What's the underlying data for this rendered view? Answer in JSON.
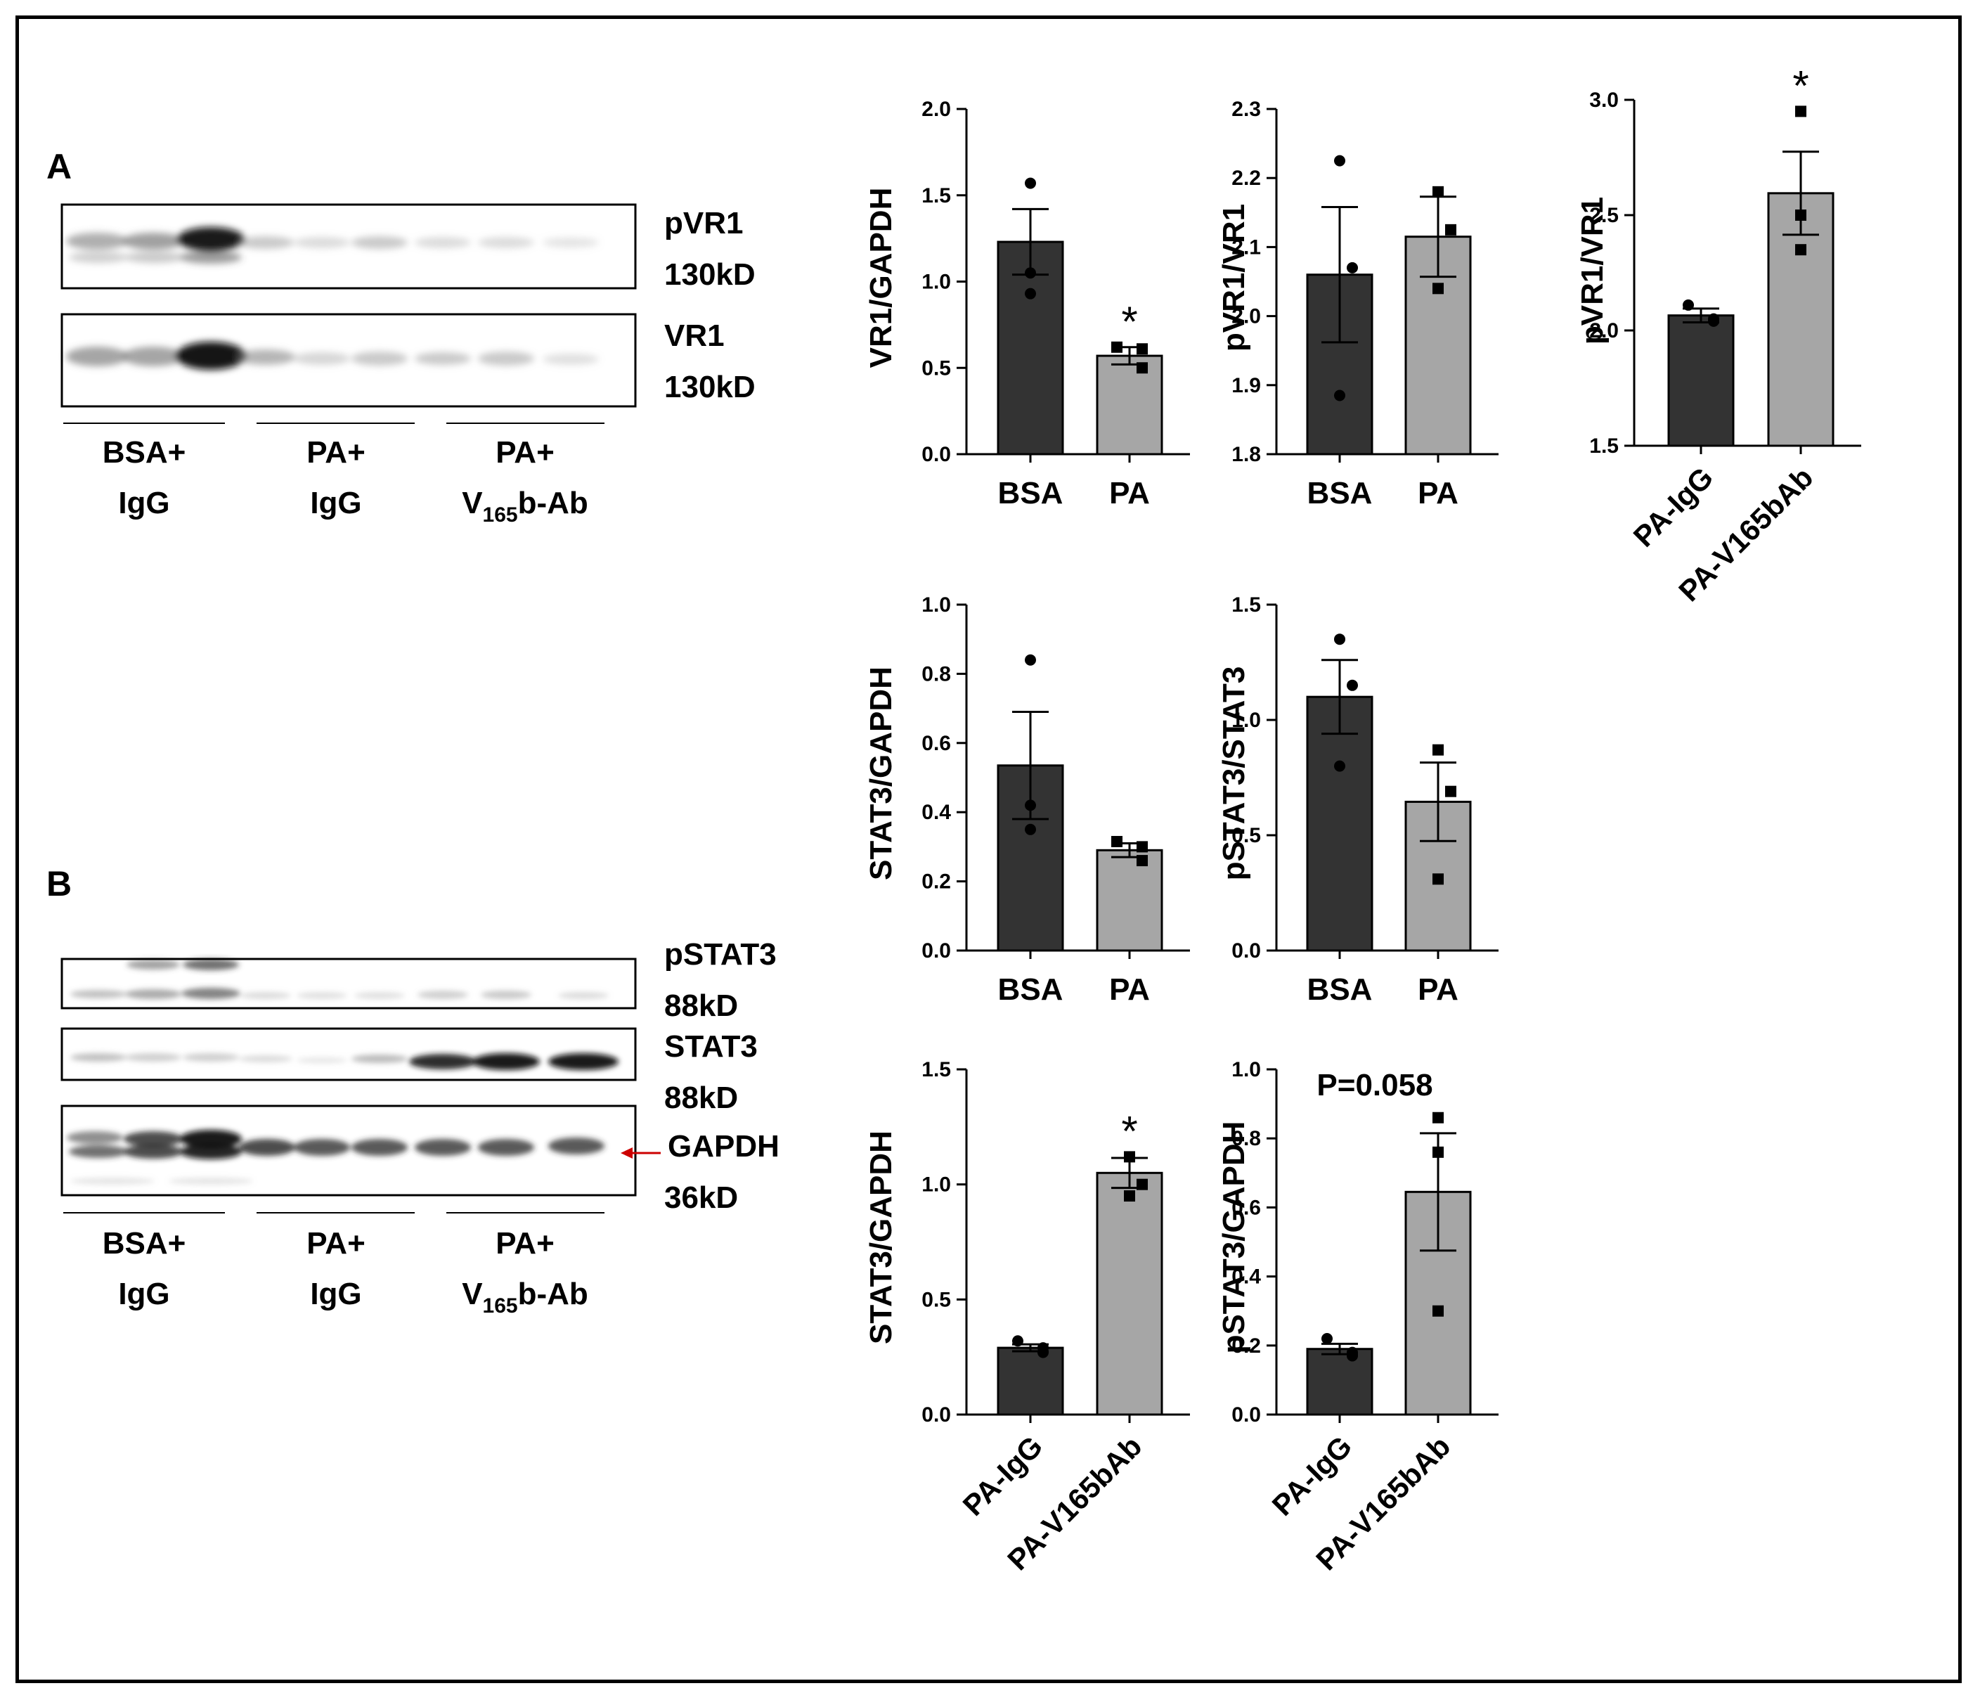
{
  "panelA": {
    "letter": "A",
    "blots": [
      {
        "name": "pVR1",
        "size": "130kD"
      },
      {
        "name": "VR1",
        "size": "130kD"
      }
    ],
    "groups": [
      {
        "line1": "BSA+",
        "line2": "IgG"
      },
      {
        "line1": "PA+",
        "line2": "IgG"
      },
      {
        "line1": "PA+",
        "line2": "V",
        "sub": "165",
        "tail": "b-Ab"
      }
    ]
  },
  "panelB": {
    "letter": "B",
    "blots": [
      {
        "name": "pSTAT3",
        "size": "88kD"
      },
      {
        "name": "STAT3",
        "size": "88kD"
      },
      {
        "name": "GAPDH",
        "size": "36kD"
      }
    ],
    "groups": [
      {
        "line1": "BSA+",
        "line2": "IgG"
      },
      {
        "line1": "PA+",
        "line2": "IgG"
      },
      {
        "line1": "PA+",
        "line2": "V",
        "sub": "165",
        "tail": "b-Ab"
      }
    ]
  },
  "colors": {
    "dark_bar": "#333333",
    "light_bar": "#a6a6a6",
    "marker_arrow": "#cc0000"
  },
  "chart_data": [
    {
      "id": "c1",
      "type": "bar",
      "ylabel": "VR1/GAPDH",
      "categories": [
        "BSA",
        "PA"
      ],
      "rotated_labels": false,
      "ylim": [
        0,
        2.0
      ],
      "ticks": [
        0.0,
        0.5,
        1.0,
        1.5,
        2.0
      ],
      "tick_labels": [
        "0.0",
        "0.5",
        "1.0",
        "1.5",
        "2.0"
      ],
      "values": [
        1.23,
        0.57
      ],
      "errors": [
        0.19,
        0.05
      ],
      "points": [
        [
          1.57,
          1.05,
          0.93
        ],
        [
          0.62,
          0.61,
          0.5
        ]
      ],
      "markers": [
        "circle",
        "square"
      ],
      "annotations": [
        {
          "text": "*",
          "category": 1
        }
      ]
    },
    {
      "id": "c2",
      "type": "bar",
      "ylabel": "pVR1/VR1",
      "categories": [
        "BSA",
        "PA"
      ],
      "rotated_labels": false,
      "ylim": [
        1.8,
        2.3
      ],
      "ticks": [
        1.8,
        1.9,
        2.0,
        2.1,
        2.2,
        2.3
      ],
      "tick_labels": [
        "1.8",
        "1.9",
        "2.0",
        "2.1",
        "2.2",
        "2.3"
      ],
      "values": [
        2.06,
        2.115
      ],
      "errors": [
        0.098,
        0.058
      ],
      "points": [
        [
          2.225,
          2.07,
          1.885
        ],
        [
          2.18,
          2.125,
          2.04
        ]
      ],
      "markers": [
        "circle",
        "square"
      ],
      "annotations": []
    },
    {
      "id": "c3",
      "type": "bar",
      "ylabel": "pVR1/VR1",
      "categories": [
        "PA-IgG",
        "PA-V165bAb"
      ],
      "rotated_labels": true,
      "ylim": [
        1.5,
        3.0
      ],
      "ticks": [
        1.5,
        2.0,
        2.5,
        3.0
      ],
      "tick_labels": [
        "1.5",
        "2.0",
        "2.5",
        "3.0"
      ],
      "values": [
        2.065,
        2.595
      ],
      "errors": [
        0.03,
        0.18
      ],
      "points": [
        [
          2.11,
          2.04,
          2.05
        ],
        [
          2.95,
          2.5,
          2.35
        ]
      ],
      "markers": [
        "circle",
        "square"
      ],
      "annotations": [
        {
          "text": "*",
          "category": 1
        }
      ]
    },
    {
      "id": "c4",
      "type": "bar",
      "ylabel": "STAT3/GAPDH",
      "categories": [
        "BSA",
        "PA"
      ],
      "rotated_labels": false,
      "ylim": [
        0,
        1.0
      ],
      "ticks": [
        0.0,
        0.2,
        0.4,
        0.6,
        0.8,
        1.0
      ],
      "tick_labels": [
        "0.0",
        "0.2",
        "0.4",
        "0.6",
        "0.8",
        "1.0"
      ],
      "values": [
        0.535,
        0.29
      ],
      "errors": [
        0.155,
        0.02
      ],
      "points": [
        [
          0.84,
          0.42,
          0.35
        ],
        [
          0.315,
          0.3,
          0.26
        ]
      ],
      "markers": [
        "circle",
        "square"
      ],
      "annotations": []
    },
    {
      "id": "c5",
      "type": "bar",
      "ylabel": "pSTAT3/STAT3",
      "categories": [
        "BSA",
        "PA"
      ],
      "rotated_labels": false,
      "ylim": [
        0,
        1.5
      ],
      "ticks": [
        0.0,
        0.5,
        1.0,
        1.5
      ],
      "tick_labels": [
        "0.0",
        "0.5",
        "1.0",
        "1.5"
      ],
      "values": [
        1.1,
        0.645
      ],
      "errors": [
        0.16,
        0.17
      ],
      "points": [
        [
          1.35,
          1.15,
          0.8
        ],
        [
          0.87,
          0.69,
          0.31
        ]
      ],
      "markers": [
        "circle",
        "square"
      ],
      "annotations": []
    },
    {
      "id": "c6",
      "type": "bar",
      "ylabel": "STAT3/GAPDH",
      "categories": [
        "PA-IgG",
        "PA-V165bAb"
      ],
      "rotated_labels": true,
      "ylim": [
        0,
        1.5
      ],
      "ticks": [
        0.0,
        0.5,
        1.0,
        1.5
      ],
      "tick_labels": [
        "0.0",
        "0.5",
        "1.0",
        "1.5"
      ],
      "values": [
        0.29,
        1.05
      ],
      "errors": [
        0.015,
        0.065
      ],
      "points": [
        [
          0.32,
          0.29,
          0.27
        ],
        [
          1.12,
          1.0,
          0.95
        ]
      ],
      "markers": [
        "circle",
        "square"
      ],
      "annotations": [
        {
          "text": "*",
          "category": 1
        }
      ]
    },
    {
      "id": "c7",
      "type": "bar",
      "ylabel": "pSTAT3/GAPDH",
      "categories": [
        "PA-IgG",
        "PA-V165bAb"
      ],
      "rotated_labels": true,
      "ylim": [
        0,
        1.0
      ],
      "ticks": [
        0.0,
        0.2,
        0.4,
        0.6,
        0.8,
        1.0
      ],
      "tick_labels": [
        "0.0",
        "0.2",
        "0.4",
        "0.6",
        "0.8",
        "1.0"
      ],
      "values": [
        0.19,
        0.645
      ],
      "errors": [
        0.015,
        0.17
      ],
      "points": [
        [
          0.22,
          0.18,
          0.17
        ],
        [
          0.86,
          0.76,
          0.3
        ]
      ],
      "markers": [
        "circle",
        "square"
      ],
      "annotations": [
        {
          "text": "P=0.058",
          "category": "center"
        }
      ]
    }
  ]
}
